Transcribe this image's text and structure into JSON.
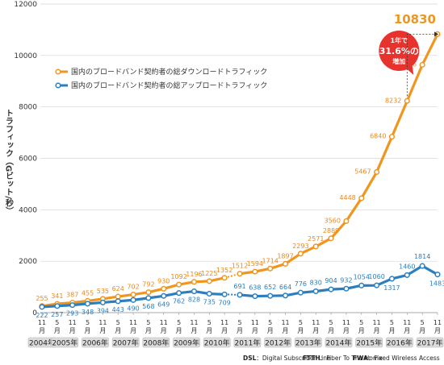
{
  "chart_data": {
    "type": "line",
    "ylabel": "トラフィック（Gビット/秒）",
    "ylim": [
      0,
      12000
    ],
    "yticks": [
      0,
      2000,
      4000,
      6000,
      8000,
      10000,
      12000
    ],
    "x": [
      "2004-11",
      "2005-05",
      "2005-11",
      "2006-05",
      "2006-11",
      "2007-05",
      "2007-11",
      "2008-05",
      "2008-11",
      "2009-05",
      "2009-11",
      "2010-05",
      "2010-11",
      "2011-05",
      "2011-11",
      "2012-05",
      "2012-11",
      "2013-05",
      "2013-11",
      "2014-05",
      "2014-11",
      "2015-05",
      "2015-11",
      "2016-05",
      "2016-11",
      "2017-05",
      "2017-11"
    ],
    "month_labels": [
      "11\n月",
      "5\n月",
      "11\n月",
      "5\n月",
      "11\n月",
      "5\n月",
      "11\n月",
      "5\n月",
      "11\n月",
      "5\n月",
      "11\n月",
      "5\n月",
      "11\n月",
      "5\n月",
      "11\n月",
      "5\n月",
      "11\n月",
      "5\n月",
      "11\n月",
      "5\n月",
      "11\n月",
      "5\n月",
      "11\n月",
      "5\n月",
      "11\n月",
      "5\n月",
      "11\n月"
    ],
    "years": [
      "2004年",
      "2005年",
      "2006年",
      "2007年",
      "2008年",
      "2009年",
      "2010年",
      "2011年",
      "2012年",
      "2013年",
      "2014年",
      "2015年",
      "2016年",
      "2017年"
    ],
    "series": [
      {
        "name": "国内のブロードバンド契約者の総ダウンロードトラフィック",
        "color": "#f0961e",
        "values": [
          255,
          341,
          387,
          455,
          535,
          624,
          702,
          792,
          930,
          1092,
          1196,
          1225,
          1352,
          1512,
          1594,
          1714,
          1897,
          2293,
          2571,
          2889,
          3560,
          4448,
          5467,
          6840,
          8232,
          9636,
          10830
        ]
      },
      {
        "name": "国内のブロードバンド契約者の総アップロードトラフィック",
        "color": "#2a7fc0",
        "values": [
          222,
          257,
          293,
          348,
          394,
          443,
          490,
          568,
          649,
          762,
          828,
          735,
          709,
          691,
          638,
          652,
          664,
          776,
          830,
          904,
          932,
          1054,
          1060,
          1317,
          1460,
          1814,
          1483
        ]
      }
    ],
    "annotation": {
      "lines": [
        "1年で",
        "31.6%の",
        "増加"
      ],
      "color": "#e8322d",
      "highlight_value": "10830"
    },
    "footnotes": [
      {
        "abbr": "DSL",
        "text": "：Digital Subscriber Line"
      },
      {
        "abbr": "FTTH",
        "text": "：Fiber To The Home"
      },
      {
        "abbr": "FWA",
        "text": "：Fixed Wireless Access"
      }
    ],
    "grid": true,
    "legend_position": "top-left"
  }
}
